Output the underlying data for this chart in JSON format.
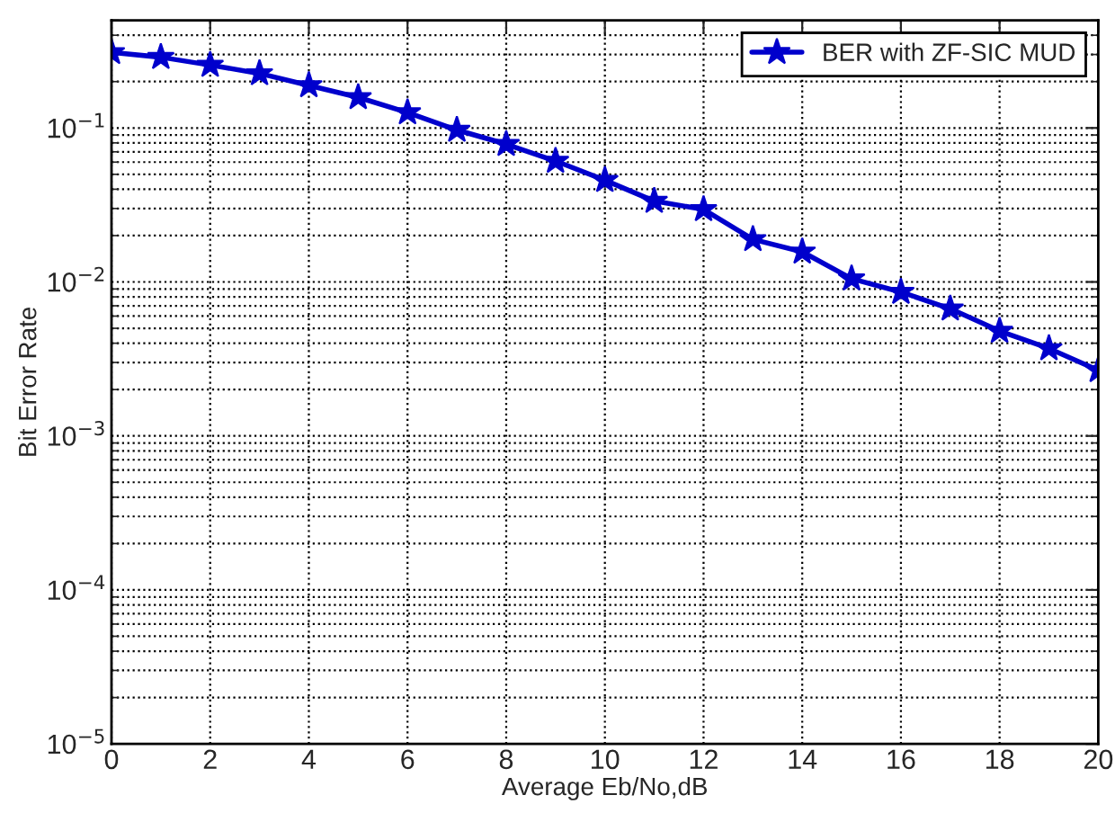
{
  "chart_data": {
    "type": "line",
    "xlabel": "Average Eb/No,dB",
    "ylabel": "Bit Error Rate",
    "x": [
      0,
      1,
      2,
      3,
      4,
      5,
      6,
      7,
      8,
      9,
      10,
      11,
      12,
      13,
      14,
      15,
      16,
      17,
      18,
      19,
      20
    ],
    "series": [
      {
        "name": "BER with ZF-SIC MUD",
        "color": "#0000cc",
        "values": [
          0.31,
          0.288,
          0.256,
          0.226,
          0.189,
          0.158,
          0.126,
          0.097,
          0.0785,
          0.061,
          0.0458,
          0.0335,
          0.0296,
          0.0189,
          0.0157,
          0.0105,
          0.0086,
          0.0067,
          0.0048,
          0.0037,
          0.00267
        ]
      }
    ],
    "log": "y",
    "xlim": [
      0,
      20
    ],
    "xticks": [
      0,
      2,
      4,
      6,
      8,
      10,
      12,
      14,
      16,
      18,
      20
    ],
    "ylim": [
      1e-05,
      0.5
    ],
    "yticks": [
      {
        "value": 1e-05,
        "label": "10$^{−5}$"
      },
      {
        "value": 0.0001,
        "label": "10$^{−4}$"
      },
      {
        "value": 0.001,
        "label": "10$^{−3}$"
      },
      {
        "value": 0.01,
        "label": "10$^{−2}$"
      },
      {
        "value": 0.1,
        "label": "10$^{−1}$"
      }
    ],
    "grid": true,
    "legend": "top right",
    "marker": "star",
    "line_style": "solid"
  }
}
